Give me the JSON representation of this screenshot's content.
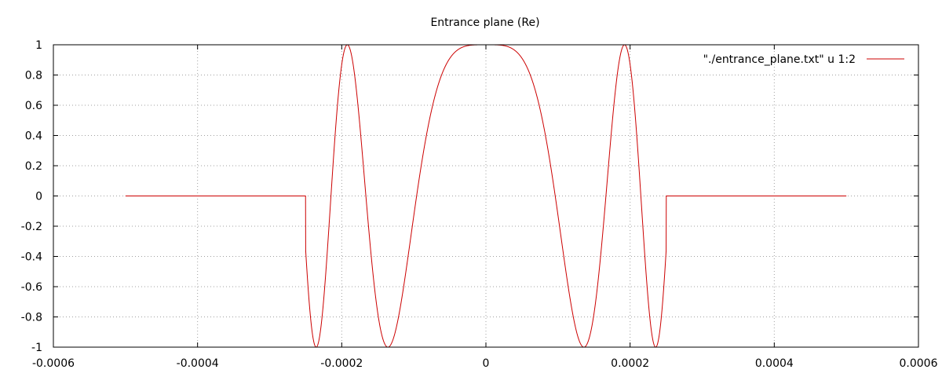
{
  "chart_data": {
    "type": "line",
    "title": "Entrance plane (Re)",
    "xlabel": "",
    "ylabel": "",
    "xlim": [
      -0.0006,
      0.0006
    ],
    "ylim": [
      -1,
      1
    ],
    "grid": true,
    "legend_position": "top-right",
    "x_ticks": [
      -0.0006,
      -0.0004,
      -0.0002,
      0,
      0.0002,
      0.0004,
      0.0006
    ],
    "x_tick_labels": [
      "-0.0006",
      "-0.0004",
      "-0.0002",
      "0",
      "0.0002",
      "0.0004",
      "0.0006"
    ],
    "y_ticks": [
      -1,
      -0.8,
      -0.6,
      -0.4,
      -0.2,
      0,
      0.2,
      0.4,
      0.6,
      0.8,
      1
    ],
    "y_tick_labels": [
      "-1",
      "-0.8",
      "-0.6",
      "-0.4",
      "-0.2",
      "0",
      "0.2",
      "0.4",
      "0.6",
      "0.8",
      "1"
    ],
    "series": [
      {
        "name": "\"./entrance_plane.txt\" u 1:2",
        "color": "#cc0000",
        "function": "cos(k*x^2) for |x| <= 0.00025, else 0",
        "k": 170000000.0,
        "x_range": [
          -0.0005,
          0.0005
        ],
        "aperture_halfwidth": 0.00025
      }
    ]
  }
}
